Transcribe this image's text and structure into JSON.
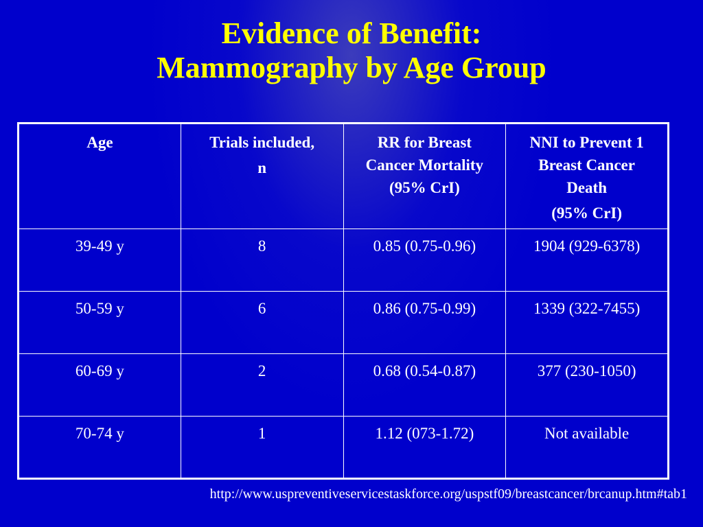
{
  "slide": {
    "title_line1": "Evidence of Benefit:",
    "title_line2": "Mammography by Age Group"
  },
  "table": {
    "headers": [
      {
        "lines": [
          "Age"
        ]
      },
      {
        "lines": [
          "Trials included,",
          "n"
        ]
      },
      {
        "lines": [
          "RR for Breast",
          "Cancer Mortality",
          "(95% CrI)"
        ]
      },
      {
        "lines": [
          "NNI to Prevent 1",
          "Breast Cancer",
          "Death",
          "(95% CrI)"
        ]
      }
    ],
    "rows": [
      [
        "39-49 y",
        "8",
        "0.85 (0.75-0.96)",
        "1904 (929-6378)"
      ],
      [
        "50-59 y",
        "6",
        "0.86 (0.75-0.99)",
        "1339 (322-7455)"
      ],
      [
        "60-69 y",
        "2",
        "0.68 (0.54-0.87)",
        "377 (230-1050)"
      ],
      [
        "70-74 y",
        "1",
        "1.12 (073-1.72)",
        "Not available"
      ]
    ]
  },
  "source_url": "http://www.uspreventiveservicestaskforce.org/uspstf09/breastcancer/brcanup.htm#tab1",
  "colors": {
    "background": "#0000cc",
    "title": "#ffff00",
    "text": "#ffffff"
  }
}
